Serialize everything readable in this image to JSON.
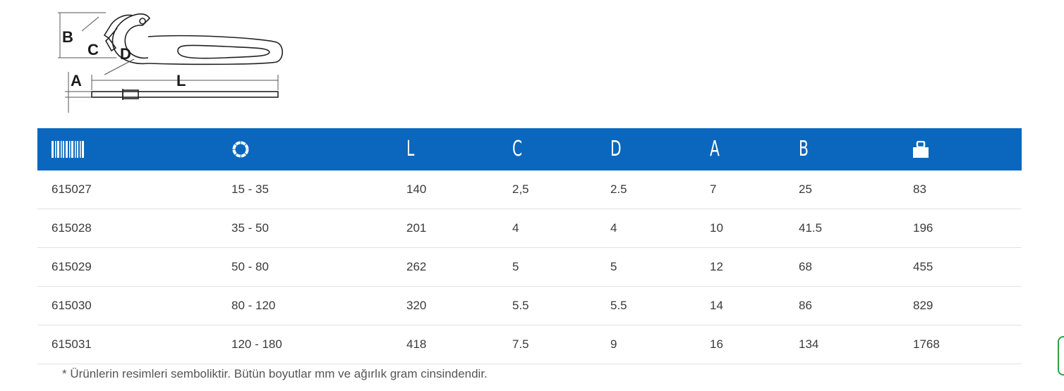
{
  "diagram": {
    "labels": [
      "B",
      "C",
      "D",
      "A",
      "L"
    ]
  },
  "table": {
    "headers": [
      {
        "icon": "barcode-icon",
        "text": ""
      },
      {
        "icon": "ring-icon",
        "text": ""
      },
      {
        "icon": "",
        "text": "L"
      },
      {
        "icon": "",
        "text": "C"
      },
      {
        "icon": "",
        "text": "D"
      },
      {
        "icon": "",
        "text": "A"
      },
      {
        "icon": "",
        "text": "B"
      },
      {
        "icon": "weight-icon",
        "text": ""
      }
    ],
    "rows": [
      [
        "615027",
        "15 - 35",
        "140",
        "2,5",
        "2.5",
        "7",
        "25",
        "83"
      ],
      [
        "615028",
        "35 - 50",
        "201",
        "4",
        "4",
        "10",
        "41.5",
        "196"
      ],
      [
        "615029",
        "50 - 80",
        "262",
        "5",
        "5",
        "12",
        "68",
        "455"
      ],
      [
        "615030",
        "80 - 120",
        "320",
        "5.5",
        "5.5",
        "14",
        "86",
        "829"
      ],
      [
        "615031",
        "120 - 180",
        "418",
        "7.5",
        "9",
        "16",
        "134",
        "1768"
      ]
    ]
  },
  "footnote": "* Ürünlerin resimleri semboliktir. Bütün boyutlar mm ve ağırlık gram cinsindendir.",
  "colors": {
    "header_bg": "#0a67bd",
    "row_border": "#e2e2e2",
    "text": "#3a3a3a",
    "widget_border": "#2ea043"
  }
}
